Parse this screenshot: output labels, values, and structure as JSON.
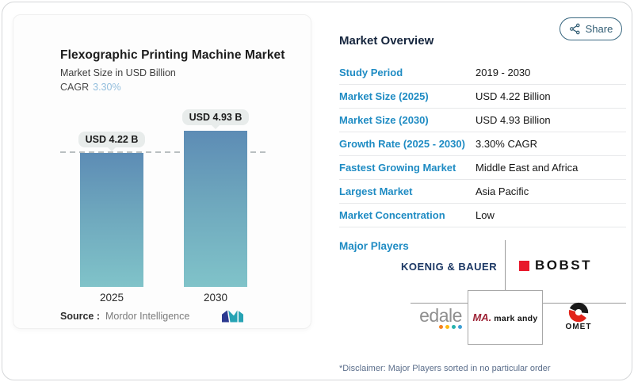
{
  "share": {
    "label": "Share"
  },
  "left_card": {
    "title": "Flexographic Printing Machine Market",
    "subtitle": "Market Size in USD Billion",
    "cagr_label": "CAGR",
    "cagr_value": "3.30%",
    "source_label": "Source :",
    "source_value": "Mordor Intelligence"
  },
  "chart_data": {
    "type": "bar",
    "categories": [
      "2025",
      "2030"
    ],
    "values": [
      4.22,
      4.93
    ],
    "value_labels": [
      "USD 4.22 B",
      "USD 4.93 B"
    ],
    "title": "Flexographic Printing Machine Market",
    "ylabel": "Market Size in USD Billion",
    "ylim": [
      0,
      5.5
    ],
    "reference_line_at": 4.22,
    "legend": "none",
    "bar_gradient_top": "#5d8cb5",
    "bar_gradient_bottom": "#80c3c9"
  },
  "overview": {
    "heading": "Market Overview",
    "rows": [
      {
        "label": "Study Period",
        "value": "2019 - 2030"
      },
      {
        "label": "Market Size (2025)",
        "value": "USD 4.22 Billion"
      },
      {
        "label": "Market Size (2030)",
        "value": "USD 4.93 Billion"
      },
      {
        "label": "Growth Rate (2025 - 2030)",
        "value": "3.30% CAGR"
      },
      {
        "label": "Fastest Growing Market",
        "value": "Middle East and Africa"
      },
      {
        "label": "Largest Market",
        "value": "Asia Pacific"
      },
      {
        "label": "Market Concentration",
        "value": "Low"
      }
    ]
  },
  "major_players": {
    "heading": "Major Players",
    "koenig_bauer": "KOENIG & BAUER",
    "bobst": "BOBST",
    "edale": "edale",
    "mark_andy_monogram": "MA.",
    "mark_andy": "mark andy",
    "omet": "OMET",
    "disclaimer": "*Disclaimer: Major Players sorted in no particular order"
  },
  "colors": {
    "accent_blue": "#1e8bc3",
    "heading_navy": "#16263e",
    "cagr_light_blue": "#93bedd",
    "share_teal": "#315d74",
    "bobst_red": "#e8192c",
    "mark_andy_red": "#9d2235",
    "koenig_navy": "#1b3764",
    "edale_dots": [
      "#f5821f",
      "#fdb913",
      "#27b3ad",
      "#3e9fd4"
    ]
  }
}
